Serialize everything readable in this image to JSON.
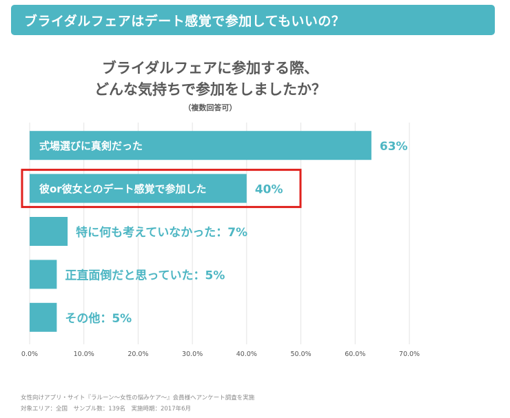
{
  "header": {
    "title": "ブライダルフェアはデート感覚で参加してもいいの？"
  },
  "colors": {
    "accent": "#4db6c3",
    "highlight": "#e0211d",
    "grid": "#e3e3e3",
    "axis_text": "#555555",
    "title_text": "#595959",
    "note_text": "#8a8a8a"
  },
  "chart_data": {
    "type": "bar",
    "orientation": "horizontal",
    "title_lines": [
      "ブライダルフェアに参加する際、",
      "どんな気持ちで参加をしましたか？"
    ],
    "subtitle": "（複数回答可）",
    "categories": [
      "式場選びに真剣だった",
      "彼or彼女とのデート感覚で参加した",
      "特に何も考えていなかった",
      "正直面倒だと思っていた",
      "その他"
    ],
    "values": [
      63,
      40,
      7,
      5,
      5
    ],
    "value_labels": [
      "63%",
      "40%",
      "特に何も考えていなかった：7%",
      "正直面倒だと思っていた：5%",
      "その他：5%"
    ],
    "inside_labels": [
      "式場選びに真剣だった",
      "彼or彼女とのデート感覚で参加した",
      "",
      "",
      ""
    ],
    "highlighted_index": 1,
    "xlim": [
      0,
      70
    ],
    "xticks": [
      "0.0%",
      "10.0%",
      "20.0%",
      "30.0%",
      "40.0%",
      "50.0%",
      "60.0%",
      "70.0%"
    ],
    "grid": true
  },
  "footnotes": [
    "女性向けアプリ・サイト『ラルーン～女性の悩みケア～』会員様へアンケート調査を実施",
    "対象エリア：全国　サンプル数：139名　実施時期：2017年6月"
  ]
}
